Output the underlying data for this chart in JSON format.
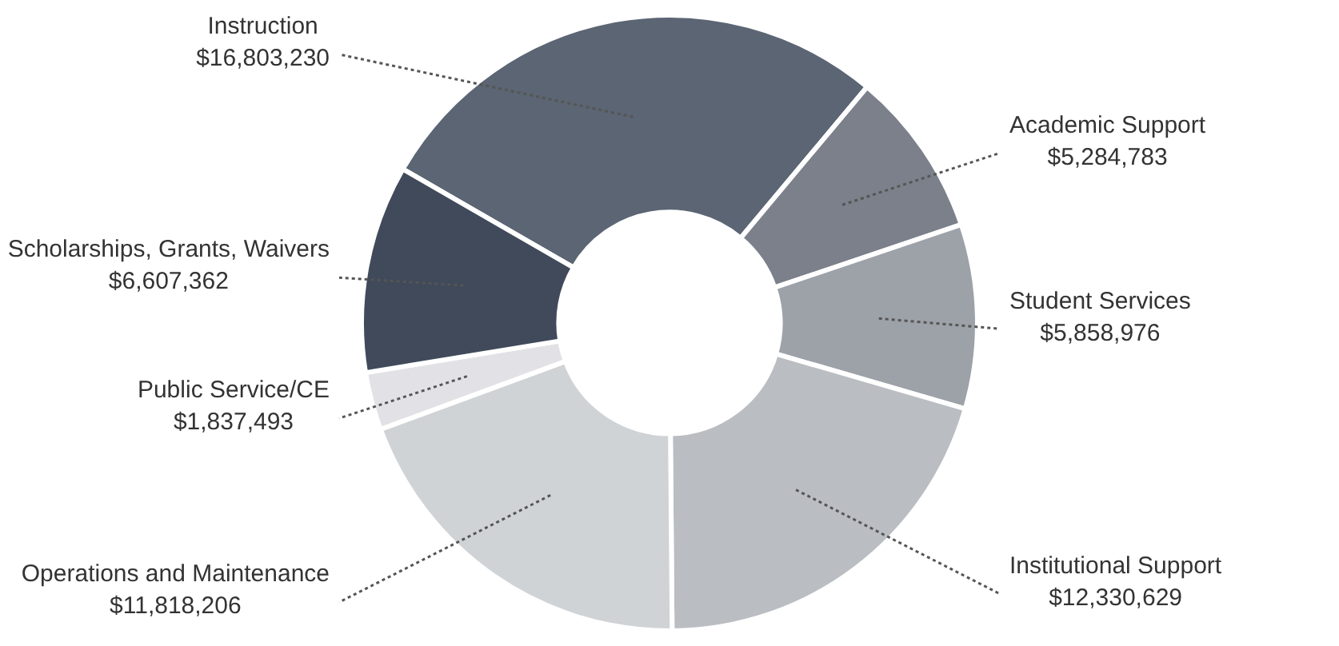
{
  "chart_data": {
    "type": "donut",
    "categories": [
      "Instruction",
      "Academic Support",
      "Student Services",
      "Institutional Support",
      "Operations and Maintenance",
      "Public Service/CE",
      "Scholarships, Grants, Waivers"
    ],
    "values": [
      16803230,
      5284783,
      5858976,
      12330629,
      11818206,
      1837493,
      6607362
    ],
    "value_labels": [
      "$16,803,230",
      "$5,284,783",
      "$5,858,976",
      "$12,330,629",
      "$11,818,206",
      "$1,837,493",
      "$6,607,362"
    ],
    "colors": [
      "#5b6573",
      "#7b808b",
      "#9da2a9",
      "#babdc1",
      "#d0d3d6",
      "#e2e2e6",
      "#404a5a"
    ],
    "legend": false
  }
}
